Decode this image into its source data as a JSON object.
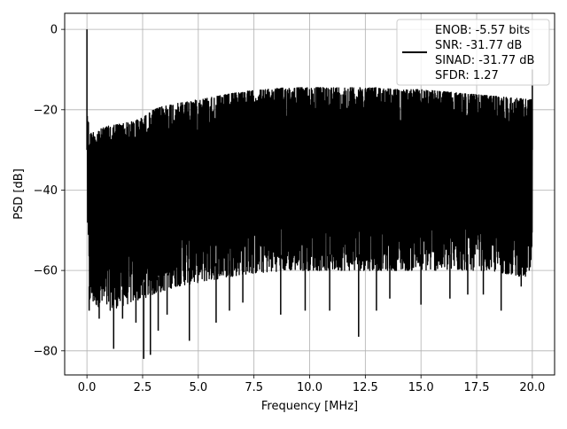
{
  "chart_data": {
    "type": "line",
    "title": "",
    "xlabel": "Frequency [MHz]",
    "ylabel": "PSD [dB]",
    "xlim": [
      -1.0,
      21.0
    ],
    "ylim": [
      -86,
      4
    ],
    "xticks": [
      0.0,
      2.5,
      5.0,
      7.5,
      10.0,
      12.5,
      15.0,
      17.5,
      20.0
    ],
    "xtick_labels": [
      "0.0",
      "2.5",
      "5.0",
      "7.5",
      "10.0",
      "12.5",
      "15.0",
      "17.5",
      "20.0"
    ],
    "yticks": [
      0,
      -20,
      -40,
      -60,
      -80
    ],
    "ytick_labels": [
      "0",
      "−20",
      "−40",
      "−60",
      "−80"
    ],
    "grid": true,
    "legend_position": "top-right",
    "series": [
      {
        "color": "#000000",
        "upper_envelope": {
          "x": [
            0.0,
            0.1,
            0.5,
            1.0,
            1.5,
            2.0,
            2.5,
            3.0,
            3.5,
            4.0,
            5.0,
            6.0,
            7.0,
            8.0,
            9.0,
            10.0,
            11.0,
            12.0,
            13.0,
            14.0,
            15.0,
            16.0,
            17.0,
            18.0,
            19.0,
            20.0
          ],
          "y": [
            -16,
            -26,
            -25,
            -24,
            -23.5,
            -23,
            -22,
            -20,
            -19,
            -18.5,
            -17.5,
            -16.5,
            -15.5,
            -15,
            -14.5,
            -14.5,
            -14.5,
            -14.5,
            -14.5,
            -15,
            -15,
            -15.5,
            -16,
            -16.5,
            -17,
            -17.5
          ]
        },
        "lower_envelope": {
          "x": [
            0.0,
            0.1,
            0.5,
            1.0,
            1.5,
            2.0,
            2.5,
            3.0,
            3.5,
            4.0,
            5.0,
            6.0,
            7.0,
            8.0,
            9.0,
            10.0,
            11.0,
            12.0,
            13.0,
            14.0,
            15.0,
            16.0,
            17.0,
            18.0,
            19.0,
            20.0
          ],
          "y": [
            -43,
            -68,
            -69,
            -70,
            -69,
            -68,
            -67,
            -66,
            -65,
            -64,
            -63,
            -62,
            -61,
            -60.5,
            -60,
            -60,
            -60,
            -60,
            -60,
            -60,
            -60,
            -60,
            -60,
            -60,
            -61,
            -62
          ]
        },
        "peaks": [
          {
            "x": 0.0,
            "y": 0.0
          },
          {
            "x": 20.0,
            "y": -10.0
          }
        ],
        "deep_dips": [
          {
            "x": 0.1,
            "y": -70
          },
          {
            "x": 0.55,
            "y": -72
          },
          {
            "x": 1.2,
            "y": -79.5
          },
          {
            "x": 1.6,
            "y": -72
          },
          {
            "x": 2.2,
            "y": -73
          },
          {
            "x": 2.55,
            "y": -82
          },
          {
            "x": 2.85,
            "y": -81
          },
          {
            "x": 3.2,
            "y": -75
          },
          {
            "x": 3.6,
            "y": -71
          },
          {
            "x": 4.6,
            "y": -77.5
          },
          {
            "x": 5.8,
            "y": -73
          },
          {
            "x": 6.4,
            "y": -70
          },
          {
            "x": 7.0,
            "y": -68
          },
          {
            "x": 8.7,
            "y": -71
          },
          {
            "x": 9.8,
            "y": -70
          },
          {
            "x": 10.9,
            "y": -70
          },
          {
            "x": 12.2,
            "y": -76.5
          },
          {
            "x": 13.0,
            "y": -70
          },
          {
            "x": 13.6,
            "y": -67
          },
          {
            "x": 15.0,
            "y": -68.5
          },
          {
            "x": 16.3,
            "y": -67
          },
          {
            "x": 17.1,
            "y": -66
          },
          {
            "x": 17.8,
            "y": -66
          },
          {
            "x": 18.6,
            "y": -70
          },
          {
            "x": 19.5,
            "y": -64
          }
        ]
      }
    ],
    "legend": {
      "lines": [
        "ENOB: -5.57 bits",
        "SNR: -31.77 dB",
        "SINAD: -31.77 dB",
        "SFDR: 1.27"
      ]
    }
  }
}
